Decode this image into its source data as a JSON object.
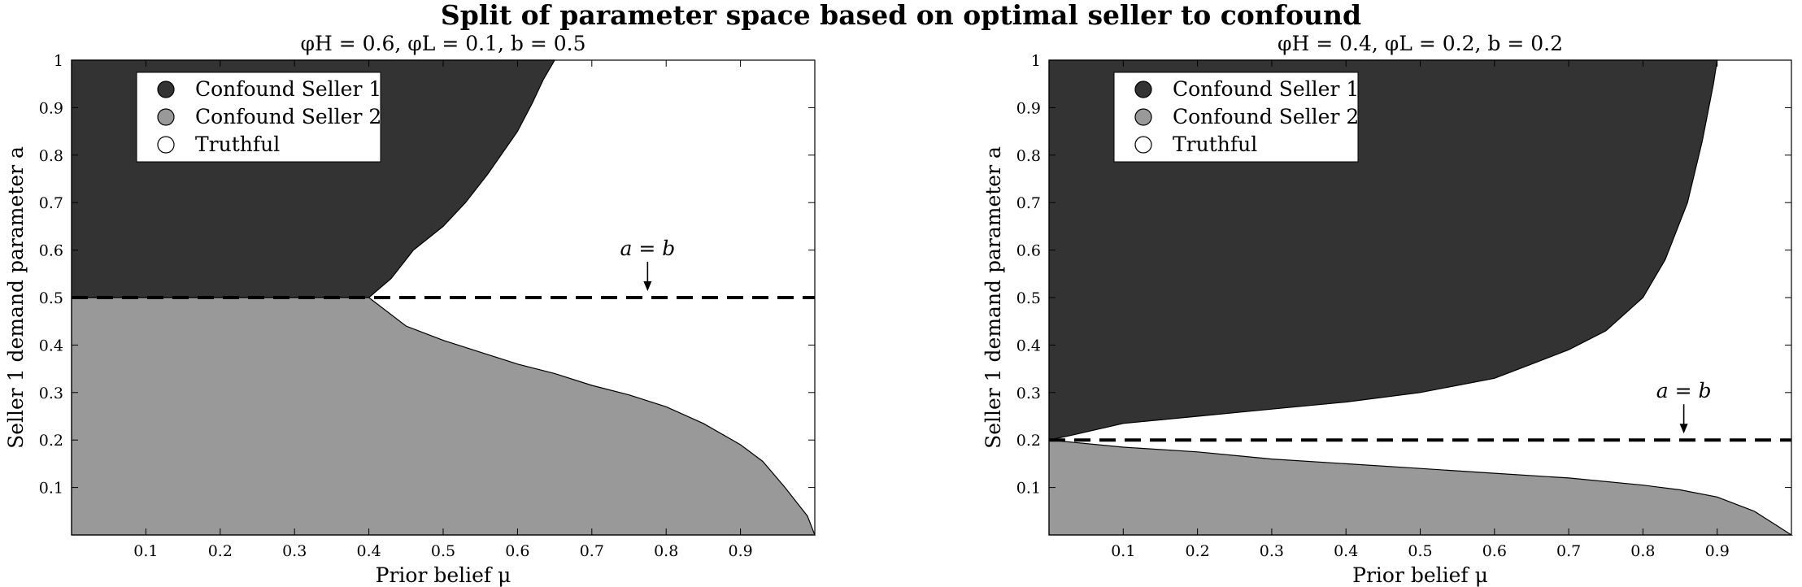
{
  "figure": {
    "suptitle": "Split of parameter space based on optimal seller to confound"
  },
  "colors": {
    "confound1": "#333333",
    "confound2": "#999999",
    "truthful": "#ffffff",
    "axis": "#000000"
  },
  "legend": [
    "Confound Seller 1",
    "Confound Seller 2",
    "Truthful"
  ],
  "chart_data": [
    {
      "type": "area",
      "title": "φH = 0.6, φL = 0.1, b = 0.5",
      "xlabel": "Prior belief μ",
      "ylabel": "Seller 1 demand parameter a",
      "xlim": [
        0,
        1
      ],
      "ylim": [
        0,
        1
      ],
      "xticks": [
        0.1,
        0.2,
        0.3,
        0.4,
        0.5,
        0.6,
        0.7,
        0.8,
        0.9
      ],
      "yticks": [
        0.1,
        0.2,
        0.3,
        0.4,
        0.5,
        0.6,
        0.7,
        0.8,
        0.9,
        1
      ],
      "legend_position": "top-left",
      "b": 0.5,
      "annotation": {
        "text": "a = b",
        "x": 0.775
      },
      "series": [
        {
          "name": "Confound Seller 1",
          "color": "#333333",
          "x": [
            0.0,
            0.1,
            0.2,
            0.3,
            0.4,
            0.43,
            0.46,
            0.5,
            0.53,
            0.56,
            0.6,
            0.62,
            0.635,
            0.65
          ],
          "lower": [
            0.5,
            0.5,
            0.5,
            0.5,
            0.5,
            0.54,
            0.6,
            0.65,
            0.7,
            0.76,
            0.85,
            0.91,
            0.96,
            1.0
          ],
          "upper": [
            1,
            1,
            1,
            1,
            1,
            1,
            1,
            1,
            1,
            1,
            1,
            1,
            1,
            1
          ]
        },
        {
          "name": "Confound Seller 2",
          "color": "#999999",
          "x": [
            0.0,
            0.1,
            0.2,
            0.3,
            0.4,
            0.45,
            0.5,
            0.55,
            0.6,
            0.65,
            0.7,
            0.75,
            0.8,
            0.85,
            0.9,
            0.93,
            0.96,
            0.98,
            0.99,
            1.0
          ],
          "lower": [
            0,
            0,
            0,
            0,
            0,
            0,
            0,
            0,
            0,
            0,
            0,
            0,
            0,
            0,
            0,
            0,
            0,
            0,
            0,
            0
          ],
          "upper": [
            0.5,
            0.5,
            0.5,
            0.5,
            0.5,
            0.44,
            0.41,
            0.385,
            0.36,
            0.34,
            0.315,
            0.295,
            0.27,
            0.235,
            0.19,
            0.155,
            0.1,
            0.06,
            0.04,
            0.0
          ]
        }
      ]
    },
    {
      "type": "area",
      "title": "φH = 0.4, φL = 0.2, b = 0.2",
      "xlabel": "Prior belief μ",
      "ylabel": "Seller 1 demand parameter a",
      "xlim": [
        0,
        1
      ],
      "ylim": [
        0,
        1
      ],
      "xticks": [
        0.1,
        0.2,
        0.3,
        0.4,
        0.5,
        0.6,
        0.7,
        0.8,
        0.9
      ],
      "yticks": [
        0.1,
        0.2,
        0.3,
        0.4,
        0.5,
        0.6,
        0.7,
        0.8,
        0.9,
        1
      ],
      "legend_position": "top-left",
      "b": 0.2,
      "annotation": {
        "text": "a = b",
        "x": 0.855
      },
      "series": [
        {
          "name": "Confound Seller 1",
          "color": "#333333",
          "x": [
            0.0,
            0.03,
            0.1,
            0.2,
            0.3,
            0.4,
            0.5,
            0.6,
            0.65,
            0.7,
            0.75,
            0.8,
            0.83,
            0.86,
            0.88,
            0.895,
            0.9
          ],
          "lower": [
            0.2,
            0.21,
            0.235,
            0.25,
            0.265,
            0.28,
            0.3,
            0.33,
            0.36,
            0.39,
            0.43,
            0.5,
            0.58,
            0.7,
            0.83,
            0.95,
            1.0
          ],
          "upper": [
            1,
            1,
            1,
            1,
            1,
            1,
            1,
            1,
            1,
            1,
            1,
            1,
            1,
            1,
            1,
            1,
            1
          ]
        },
        {
          "name": "Confound Seller 2",
          "color": "#999999",
          "x": [
            0.0,
            0.1,
            0.2,
            0.3,
            0.4,
            0.5,
            0.6,
            0.7,
            0.8,
            0.85,
            0.9,
            0.95,
            0.98,
            1.0
          ],
          "lower": [
            0,
            0,
            0,
            0,
            0,
            0,
            0,
            0,
            0,
            0,
            0,
            0,
            0,
            0
          ],
          "upper": [
            0.2,
            0.185,
            0.175,
            0.16,
            0.15,
            0.14,
            0.13,
            0.12,
            0.105,
            0.095,
            0.08,
            0.05,
            0.02,
            0.0
          ]
        }
      ]
    }
  ]
}
